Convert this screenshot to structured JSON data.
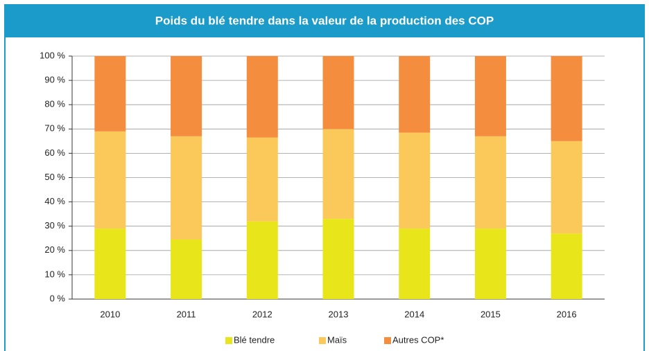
{
  "chart_data": {
    "type": "stacked_bar",
    "title": "Poids du blé tendre dans la valeur de la production des COP",
    "categories": [
      "2010",
      "2011",
      "2012",
      "2013",
      "2014",
      "2015",
      "2016"
    ],
    "series": [
      {
        "name": "Blé tendre",
        "color": "#e8e61a",
        "values": [
          29,
          24.5,
          32,
          33,
          29,
          29,
          27
        ]
      },
      {
        "name": "Maïs",
        "color": "#fbc85a",
        "values": [
          40,
          42.5,
          34.5,
          37,
          39.5,
          38,
          38
        ]
      },
      {
        "name": "Autres COP*",
        "color": "#f48d3e",
        "values": [
          31,
          33,
          33.5,
          30,
          31.5,
          33,
          35
        ]
      }
    ],
    "ylim": [
      0,
      100
    ],
    "yticks": [
      {
        "value": 0,
        "label": "0 %"
      },
      {
        "value": 10,
        "label": "10 %"
      },
      {
        "value": 20,
        "label": "20 %"
      },
      {
        "value": 30,
        "label": "30 %"
      },
      {
        "value": 40,
        "label": "40 %"
      },
      {
        "value": 50,
        "label": "50 %"
      },
      {
        "value": 60,
        "label": "60 %"
      },
      {
        "value": 70,
        "label": "70 %"
      },
      {
        "value": 80,
        "label": "80 %"
      },
      {
        "value": 90,
        "label": "90 %"
      },
      {
        "value": 100,
        "label": "100 %"
      }
    ],
    "grid": true,
    "legend": "bottom"
  }
}
